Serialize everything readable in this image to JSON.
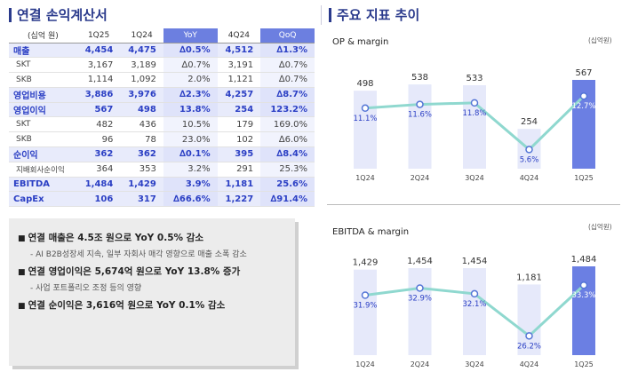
{
  "left_title": "연결 손익계산서",
  "right_title": "주요 지표 추이",
  "table": {
    "unit": "(십억 원)",
    "headers": [
      "1Q25",
      "1Q24",
      "YoY",
      "4Q24",
      "QoQ"
    ],
    "rows": [
      {
        "label": "매출",
        "type": "main",
        "values": [
          "4,454",
          "4,475",
          "∆0.5%",
          "4,512",
          "∆1.3%"
        ]
      },
      {
        "label": "SKT",
        "type": "sub",
        "values": [
          "3,167",
          "3,189",
          "∆0.7%",
          "3,191",
          "∆0.7%"
        ]
      },
      {
        "label": "SKB",
        "type": "sub",
        "values": [
          "1,114",
          "1,092",
          "2.0%",
          "1,121",
          "∆0.7%"
        ]
      },
      {
        "label": "영업비용",
        "type": "main",
        "values": [
          "3,886",
          "3,976",
          "∆2.3%",
          "4,257",
          "∆8.7%"
        ]
      },
      {
        "label": "영업이익",
        "type": "main",
        "values": [
          "567",
          "498",
          "13.8%",
          "254",
          "123.2%"
        ]
      },
      {
        "label": "SKT",
        "type": "sub",
        "values": [
          "482",
          "436",
          "10.5%",
          "179",
          "169.0%"
        ]
      },
      {
        "label": "SKB",
        "type": "sub",
        "values": [
          "96",
          "78",
          "23.0%",
          "102",
          "∆6.0%"
        ]
      },
      {
        "label": "순이익",
        "type": "main",
        "values": [
          "362",
          "362",
          "∆0.1%",
          "395",
          "∆8.4%"
        ]
      },
      {
        "label": "지배회사순이익",
        "type": "sub2",
        "values": [
          "364",
          "353",
          "3.2%",
          "291",
          "25.3%"
        ]
      },
      {
        "label": "EBITDA",
        "type": "main",
        "values": [
          "1,484",
          "1,429",
          "3.9%",
          "1,181",
          "25.6%"
        ]
      },
      {
        "label": "CapEx",
        "type": "main",
        "values": [
          "106",
          "317",
          "∆66.6%",
          "1,227",
          "∆91.4%"
        ]
      }
    ]
  },
  "summary": [
    {
      "bold": "연결 매출은 4.5조 원으로 YoY 0.5% 감소",
      "sub": "- AI B2B성장세 지속, 일부 자회사 매각 영향으로 매출 소폭 감소"
    },
    {
      "bold": "연결 영업이익은 5,674억 원으로 YoY 13.8% 증가",
      "sub": "- 사업 포트폴리오 조정 등의 영향"
    },
    {
      "bold": "연결 순이익은 3,616억 원으로 YoY 0.1% 감소",
      "sub": ""
    }
  ],
  "colors": {
    "bar": "#e6e9fa",
    "bar_highlight": "#6b7fe3",
    "line": "#8fd8cf",
    "point_border": "#5576d6",
    "accent": "#2b3fc4"
  },
  "chart_data": [
    {
      "type": "bar",
      "title": "OP & margin",
      "unit": "(십억원)",
      "categories": [
        "1Q24",
        "2Q24",
        "3Q24",
        "4Q24",
        "1Q25"
      ],
      "values": [
        498,
        538,
        533,
        254,
        567
      ],
      "value_labels": [
        "498",
        "538",
        "533",
        "254",
        "567"
      ],
      "line_values": [
        11.1,
        11.6,
        11.8,
        5.6,
        12.7
      ],
      "line_labels": [
        "11.1%",
        "11.6%",
        "11.8%",
        "5.6%",
        "12.7%"
      ],
      "highlight_index": 4,
      "ylim": [
        0,
        567
      ],
      "line_ylim": [
        4,
        13.2
      ]
    },
    {
      "type": "bar",
      "title": "EBITDA & margin",
      "unit": "(십억원)",
      "categories": [
        "1Q24",
        "2Q24",
        "3Q24",
        "4Q24",
        "1Q25"
      ],
      "values": [
        1429,
        1454,
        1454,
        1181,
        1484
      ],
      "value_labels": [
        "1,429",
        "1,454",
        "1,454",
        "1,181",
        "1,484"
      ],
      "line_values": [
        31.9,
        32.9,
        32.1,
        26.2,
        33.3
      ],
      "line_labels": [
        "31.9%",
        "32.9%",
        "32.1%",
        "26.2%",
        "33.3%"
      ],
      "highlight_index": 4,
      "ylim": [
        0,
        1484
      ],
      "line_ylim": [
        24.5,
        34.2
      ]
    }
  ]
}
